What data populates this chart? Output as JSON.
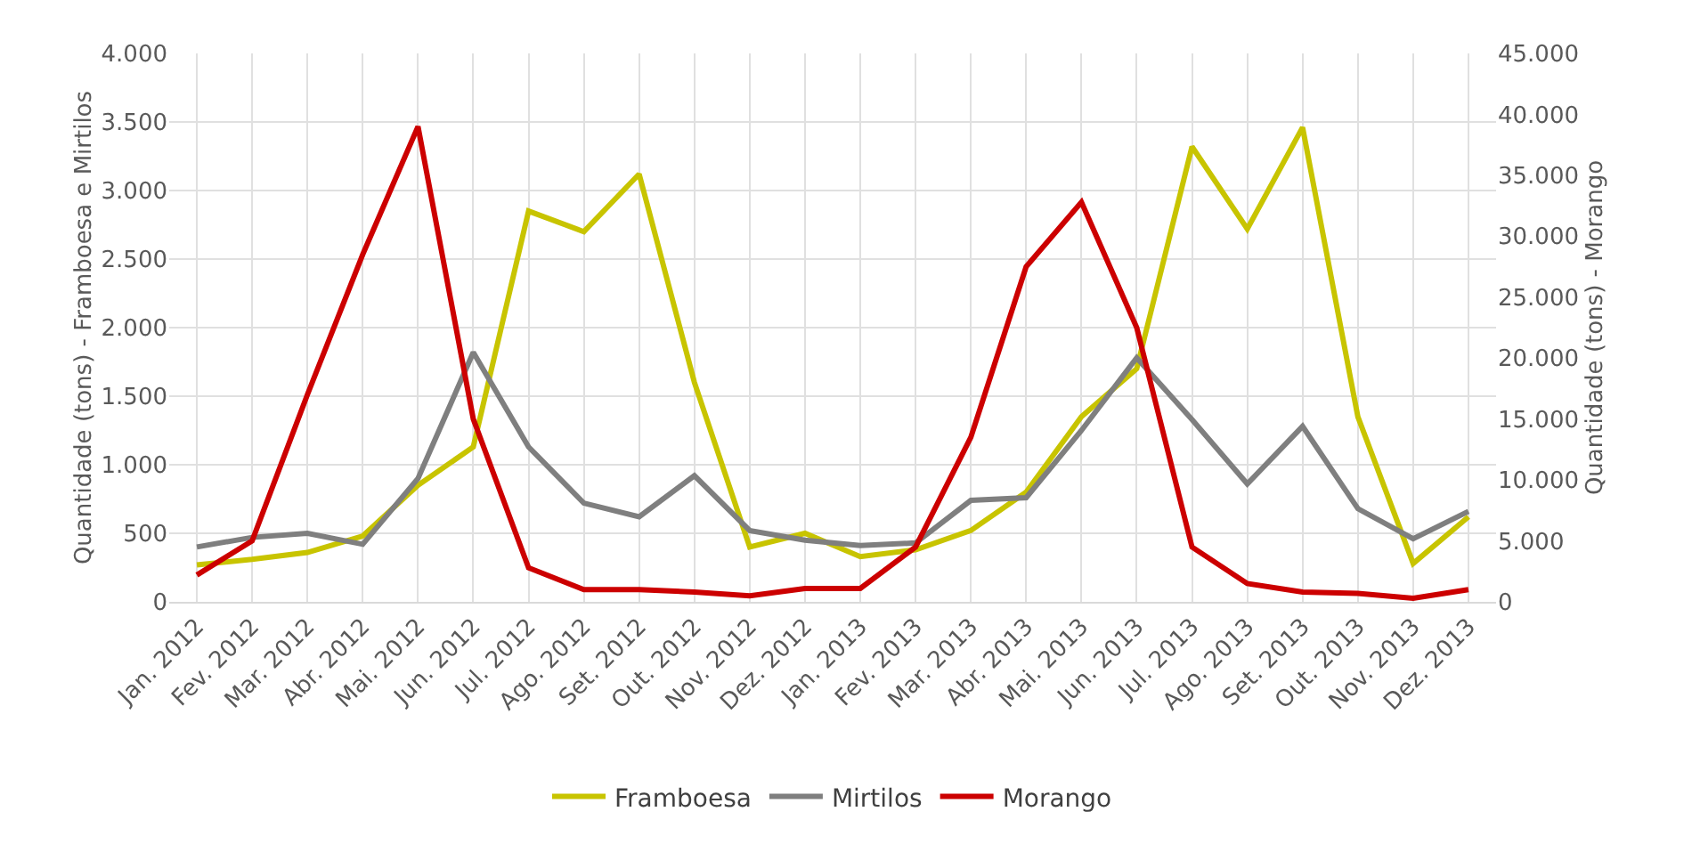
{
  "chart_data": {
    "type": "line",
    "categories": [
      "Jan. 2012",
      "Fev. 2012",
      "Mar. 2012",
      "Abr. 2012",
      "Mai. 2012",
      "Jun. 2012",
      "Jul. 2012",
      "Ago. 2012",
      "Set. 2012",
      "Out. 2012",
      "Nov. 2012",
      "Dez. 2012",
      "Jan. 2013",
      "Fev. 2013",
      "Mar. 2013",
      "Abr. 2013",
      "Mai. 2013",
      "Jun. 2013",
      "Jul. 2013",
      "Ago. 2013",
      "Set. 2013",
      "Out. 2013",
      "Nov. 2013",
      "Dez. 2013"
    ],
    "series": [
      {
        "name": "Framboesa",
        "color": "#c8c400",
        "values": [
          270,
          310,
          360,
          480,
          850,
          1130,
          2850,
          2700,
          3120,
          1600,
          400,
          500,
          330,
          380,
          520,
          800,
          1350,
          1700,
          3320,
          2720,
          3460,
          1350,
          280,
          620
        ]
      },
      {
        "name": "Mirtilos",
        "color": "#7f7f7f",
        "values": [
          400,
          470,
          500,
          420,
          900,
          1820,
          1130,
          720,
          620,
          920,
          520,
          450,
          410,
          430,
          740,
          760,
          1250,
          1780,
          1330,
          860,
          1280,
          680,
          460,
          660
        ]
      },
      {
        "name": "Morango",
        "color": "#cc0000",
        "axis": "y2",
        "values": [
          2200,
          5000,
          17000,
          28500,
          39000,
          15000,
          2800,
          1000,
          1000,
          800,
          500,
          1100,
          1100,
          4500,
          13500,
          27500,
          32800,
          22500,
          4500,
          1500,
          800,
          700,
          300,
          1000
        ]
      }
    ],
    "ylabel": "Quantidade (tons) - Framboesa e Mirtilos",
    "y2label": "Quantidade (tons) - Morango",
    "ylim": [
      0,
      4000
    ],
    "yticks": [
      {
        "value": 0,
        "label": "0"
      },
      {
        "value": 500,
        "label": "500"
      },
      {
        "value": 1000,
        "label": "1.000"
      },
      {
        "value": 1500,
        "label": "1.500"
      },
      {
        "value": 2000,
        "label": "2.000"
      },
      {
        "value": 2500,
        "label": "2.500"
      },
      {
        "value": 3000,
        "label": "3.000"
      },
      {
        "value": 3500,
        "label": "3.500"
      },
      {
        "value": 4000,
        "label": "4.000"
      }
    ],
    "y2lim": [
      0,
      45000
    ],
    "y2ticks": [
      {
        "value": 0,
        "label": "0"
      },
      {
        "value": 5000,
        "label": "5.000"
      },
      {
        "value": 10000,
        "label": "10.000"
      },
      {
        "value": 15000,
        "label": "15.000"
      },
      {
        "value": 20000,
        "label": "20.000"
      },
      {
        "value": 25000,
        "label": "25.000"
      },
      {
        "value": 30000,
        "label": "30.000"
      },
      {
        "value": 35000,
        "label": "35.000"
      },
      {
        "value": 40000,
        "label": "40.000"
      },
      {
        "value": 45000,
        "label": "45.000"
      }
    ],
    "grid": true,
    "legend": "bottom",
    "marker": "none",
    "line_style": "solid"
  }
}
